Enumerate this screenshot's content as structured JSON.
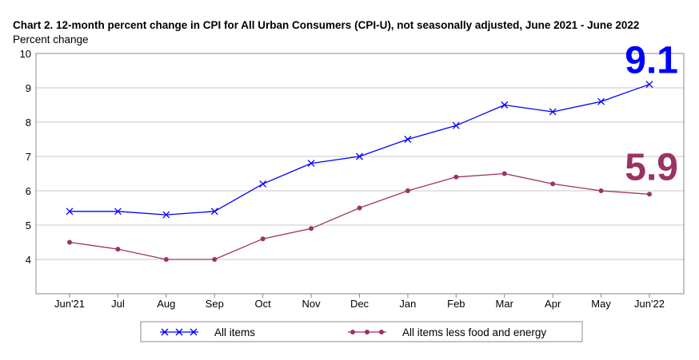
{
  "chart_data": {
    "type": "line",
    "title": "Chart 2. 12-month percent change in CPI for All Urban Consumers (CPI-U), not seasonally adjusted, June 2021 - June 2022",
    "ylabel": "Percent change",
    "xlabel": "",
    "categories": [
      "Jun'21",
      "Jul",
      "Aug",
      "Sep",
      "Oct",
      "Nov",
      "Dec",
      "Jan",
      "Feb",
      "Mar",
      "Apr",
      "May",
      "Jun'22"
    ],
    "ylim": [
      3,
      10
    ],
    "yticks": [
      4,
      5,
      6,
      7,
      8,
      9,
      10
    ],
    "grid": "horizontal",
    "legend_placement": "bottom",
    "series": [
      {
        "name": "All items",
        "color": "#0000ff",
        "marker": "x",
        "values": [
          5.4,
          5.4,
          5.3,
          5.4,
          6.2,
          6.8,
          7.0,
          7.5,
          7.9,
          8.5,
          8.3,
          8.6,
          9.1
        ],
        "end_label": "9.1"
      },
      {
        "name": "All items less food and energy",
        "color": "#993366",
        "marker": "circle",
        "values": [
          4.5,
          4.3,
          4.0,
          4.0,
          4.6,
          4.9,
          5.5,
          6.0,
          6.4,
          6.5,
          6.2,
          6.0,
          5.9
        ],
        "end_label": "5.9"
      }
    ]
  }
}
